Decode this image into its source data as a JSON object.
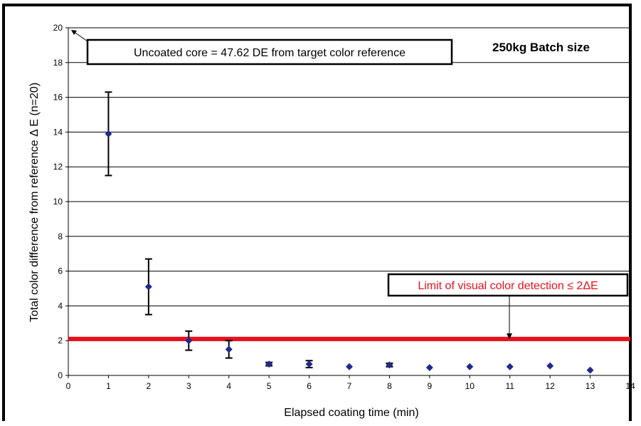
{
  "chart_data": {
    "type": "scatter",
    "title": "",
    "xlabel": "Elapsed coating time (min)",
    "ylabel": "Total color difference from reference Δ E (n=20)",
    "xlim": [
      0,
      14
    ],
    "ylim": [
      0,
      20
    ],
    "xticks": [
      0,
      1,
      2,
      3,
      4,
      5,
      6,
      7,
      8,
      9,
      10,
      11,
      12,
      13,
      14
    ],
    "yticks": [
      0,
      2,
      4,
      6,
      8,
      10,
      12,
      14,
      16,
      18,
      20
    ],
    "grid": "horizontal",
    "series": [
      {
        "x": [
          1,
          2,
          3,
          4,
          5,
          6,
          7,
          8,
          9,
          10,
          11,
          12,
          13
        ],
        "y": [
          13.9,
          5.1,
          2.0,
          1.5,
          0.65,
          0.65,
          0.5,
          0.6,
          0.45,
          0.5,
          0.5,
          0.55,
          0.3
        ],
        "error": [
          2.4,
          1.6,
          0.55,
          0.5,
          0.1,
          0.2,
          0,
          0.1,
          0,
          0,
          0,
          0,
          0
        ],
        "marker_color": "#1f2a8c"
      }
    ],
    "reference_line": {
      "y": 2.1,
      "color": "#e8101c"
    },
    "annotations": {
      "uncoated": "Uncoated core = 47.62 DE from target color reference",
      "batch": "250kg Batch size",
      "limit": "Limit of visual color detection ≤ 2ΔE"
    }
  }
}
